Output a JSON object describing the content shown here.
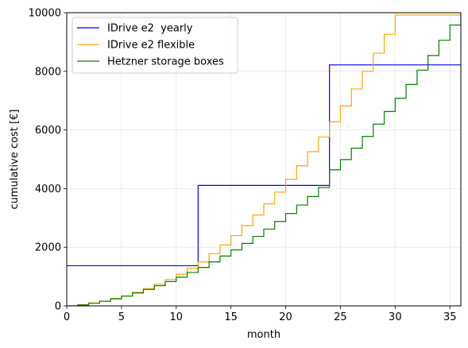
{
  "chart_data": {
    "type": "line",
    "step": "post",
    "xlabel": "month",
    "ylabel": "cumulative cost [€]",
    "xlim": [
      0,
      36
    ],
    "ylim": [
      0,
      10000
    ],
    "x_ticks": [
      0,
      5,
      10,
      15,
      20,
      25,
      30,
      35
    ],
    "y_ticks": [
      0,
      2000,
      4000,
      6000,
      8000,
      10000
    ],
    "x_tick_labels": [
      "0",
      "5",
      "10",
      "15",
      "20",
      "25",
      "30",
      "35"
    ],
    "y_tick_labels": [
      "0",
      "2000",
      "4000",
      "6000",
      "8000",
      "10000"
    ],
    "grid": true,
    "legend_position": "top-left",
    "series": [
      {
        "name": "IDrive e2  yearly",
        "color": "#0000ff",
        "x": [
          0,
          12,
          24,
          36
        ],
        "y": [
          1370,
          4110,
          8220,
          8220
        ]
      },
      {
        "name": "IDrive e2 flexible",
        "color": "#ffa500",
        "x": [
          0,
          1,
          2,
          3,
          4,
          5,
          6,
          7,
          8,
          9,
          10,
          11,
          12,
          13,
          14,
          15,
          16,
          17,
          18,
          19,
          20,
          21,
          22,
          23,
          24,
          25,
          26,
          27,
          28,
          29,
          30
        ],
        "y": [
          0,
          40,
          100,
          160,
          250,
          340,
          460,
          590,
          740,
          900,
          1080,
          1280,
          1500,
          1780,
          2080,
          2400,
          2740,
          3100,
          3480,
          3880,
          4320,
          4780,
          5260,
          5760,
          6280,
          6820,
          7400,
          8000,
          8620,
          9260,
          9920
        ]
      },
      {
        "name": "Hetzner storage boxes",
        "color": "#008000",
        "x": [
          0,
          1,
          2,
          3,
          4,
          5,
          6,
          7,
          8,
          9,
          10,
          11,
          12,
          13,
          14,
          15,
          16,
          17,
          18,
          19,
          20,
          21,
          22,
          23,
          24,
          25,
          26,
          27,
          28,
          29,
          30,
          31,
          32,
          33,
          34,
          35,
          36
        ],
        "y": [
          0,
          30,
          90,
          160,
          240,
          330,
          440,
          560,
          690,
          830,
          980,
          1140,
          1310,
          1500,
          1700,
          1910,
          2130,
          2370,
          2620,
          2880,
          3150,
          3440,
          3730,
          4040,
          4640,
          4990,
          5380,
          5780,
          6200,
          6630,
          7080,
          7550,
          8040,
          8540,
          9060,
          9580,
          10000
        ]
      }
    ]
  }
}
